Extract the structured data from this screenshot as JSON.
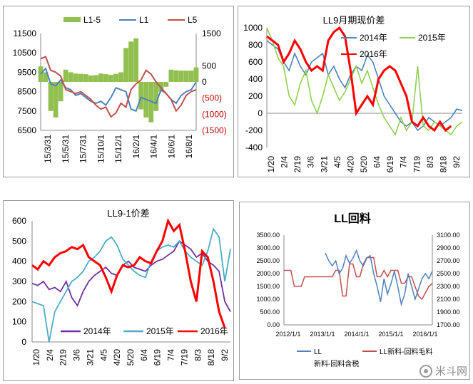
{
  "watermark": {
    "text": "米斗网",
    "icon": "wechat-icon"
  },
  "chart_data": [
    {
      "id": "c1",
      "type": "line",
      "title": "",
      "legend": {
        "position": "top",
        "entries": [
          "L1-5",
          "L1",
          "L5"
        ]
      },
      "left_axis": {
        "ticks": [
          "11500",
          "10500",
          "9500",
          "8500",
          "7500",
          "6500"
        ],
        "range": [
          6500,
          11500
        ]
      },
      "right_axis": {
        "ticks": [
          "1500",
          "500",
          "0",
          "(500)",
          "(1000)",
          "(1500)"
        ],
        "range": [
          -1500,
          1500
        ],
        "negative_color": "#c00000"
      },
      "x_ticks": [
        "15/3/31",
        "15/5/31",
        "15/7/31",
        "15/10/1",
        "15/12/1",
        "16/2/1",
        "16/4/1",
        "16/6/1",
        "16/8/1"
      ],
      "colors": {
        "L1-5": "#92c050",
        "L1": "#4f81bd",
        "L5": "#c0504d"
      },
      "series": [
        {
          "name": "L1-5",
          "axis": "right",
          "kind": "area",
          "values": [
            480,
            300,
            -900,
            -1100,
            -600,
            380,
            300,
            260,
            250,
            240,
            200,
            210,
            260,
            240,
            220,
            250,
            300,
            1050,
            1250,
            1350,
            -850,
            -1100,
            -1250,
            -900,
            -300,
            -150,
            380,
            360,
            350,
            350,
            350,
            450
          ]
        },
        {
          "name": "L1",
          "axis": "left",
          "values": [
            9400,
            9700,
            8900,
            8800,
            9100,
            8700,
            8600,
            8300,
            8400,
            8200,
            8000,
            7900,
            8000,
            7800,
            8200,
            8700,
            8600,
            8500,
            7600,
            7500,
            8200,
            8100,
            8000,
            7900,
            8600,
            8400,
            8100,
            7900,
            8300,
            8500,
            8600,
            9000
          ]
        },
        {
          "name": "L5",
          "axis": "left",
          "values": [
            10200,
            10300,
            9600,
            9500,
            9300,
            8600,
            8500,
            8400,
            8500,
            8300,
            8100,
            7800,
            7600,
            7700,
            7200,
            7400,
            7900,
            7700,
            8600,
            8900,
            9100,
            9600,
            9400,
            9000,
            8700,
            8400,
            8100,
            7500,
            7800,
            8300,
            8500,
            8600
          ]
        }
      ]
    },
    {
      "id": "c2",
      "type": "line",
      "title": "LL9月期现价差",
      "legend": {
        "position": "top-right",
        "entries": [
          "2014年",
          "2015年",
          "2016年"
        ]
      },
      "y_ticks": [
        "1000",
        "800",
        "600",
        "400",
        "200",
        "0",
        "-200",
        "-400"
      ],
      "ylim": [
        -400,
        1000
      ],
      "x_ticks": [
        "1/20",
        "2/4",
        "2/19",
        "3/6",
        "3/21",
        "4/5",
        "4/20",
        "5/20",
        "6/4",
        "6/19",
        "7/4",
        "7/19",
        "8/3",
        "8/18",
        "9/2"
      ],
      "colors": {
        "2014年": "#4f81bd",
        "2015年": "#92d050",
        "2016年": "#ff0000"
      },
      "series": [
        {
          "name": "2014年",
          "values": [
            850,
            800,
            750,
            600,
            500,
            700,
            550,
            450,
            600,
            650,
            700,
            450,
            550,
            400,
            300,
            450,
            550,
            500,
            680,
            600,
            400,
            200,
            100,
            0,
            -100,
            -150,
            -100,
            -200,
            -150,
            -50,
            -100,
            -150,
            -100,
            -50,
            50,
            30
          ]
        },
        {
          "name": "2015年",
          "values": [
            1000,
            850,
            650,
            550,
            200,
            100,
            350,
            500,
            150,
            0,
            200,
            450,
            300,
            150,
            250,
            400,
            550,
            350,
            500,
            300,
            100,
            -50,
            -150,
            -250,
            -50,
            -200,
            -100,
            550,
            -150,
            -200,
            -100,
            -150,
            -200,
            -250,
            -150,
            -100
          ]
        },
        {
          "name": "2016年",
          "values": [
            900,
            850,
            800,
            600,
            700,
            850,
            750,
            600,
            500,
            550,
            500,
            850,
            950,
            1000,
            900,
            500,
            0,
            100,
            200,
            100,
            400,
            500,
            550,
            500,
            350,
            200,
            -100,
            -150,
            -50,
            -150,
            -200,
            -100,
            -200,
            -150,
            null,
            null
          ]
        }
      ]
    },
    {
      "id": "c3",
      "type": "line",
      "title": "LL9-1价差",
      "legend": {
        "position": "bottom",
        "entries": [
          "2014年",
          "2015年",
          "2016年"
        ]
      },
      "y_ticks": [
        "600",
        "500",
        "400",
        "300",
        "200",
        "100",
        "0"
      ],
      "ylim": [
        0,
        600
      ],
      "x_ticks": [
        "1/20",
        "2/4",
        "2/19",
        "3/6",
        "3/21",
        "4/5",
        "4/20",
        "5/20",
        "6/4",
        "6/19",
        "7/4",
        "7/19",
        "8/3",
        "8/18",
        "9/2"
      ],
      "colors": {
        "2014年": "#7030a0",
        "2015年": "#4bacc6",
        "2016年": "#ff0000"
      },
      "series": [
        {
          "name": "2014年",
          "values": [
            290,
            280,
            300,
            260,
            270,
            250,
            300,
            220,
            180,
            250,
            300,
            330,
            350,
            370,
            340,
            330,
            380,
            400,
            370,
            360,
            350,
            380,
            400,
            410,
            430,
            450,
            500,
            480,
            460,
            420,
            440,
            400,
            380,
            350,
            200,
            150
          ]
        },
        {
          "name": "2015年",
          "values": [
            200,
            190,
            180,
            0,
            150,
            200,
            250,
            300,
            320,
            350,
            400,
            420,
            450,
            500,
            520,
            480,
            410,
            380,
            350,
            330,
            320,
            400,
            450,
            470,
            480,
            470,
            500,
            450,
            420,
            400,
            380,
            450,
            560,
            520,
            300,
            460
          ]
        },
        {
          "name": "2016年",
          "values": [
            380,
            360,
            400,
            380,
            420,
            440,
            450,
            470,
            460,
            480,
            420,
            400,
            380,
            320,
            250,
            330,
            380,
            370,
            380,
            420,
            400,
            390,
            450,
            500,
            600,
            550,
            580,
            450,
            300,
            200,
            450,
            420,
            300,
            150,
            70,
            null
          ]
        }
      ]
    },
    {
      "id": "c4",
      "type": "line",
      "title": "LL回料",
      "legend": {
        "position": "bottom",
        "entries": [
          "LL",
          "LL新料-回料毛料"
        ]
      },
      "left_axis": {
        "ticks": [
          "3500.00",
          "3000.00",
          "2500.00",
          "2000.00",
          "1500.00",
          "1000.00",
          "500.00",
          "0.00"
        ],
        "range": [
          0,
          3500
        ]
      },
      "right_axis": {
        "ticks": [
          "3100.00",
          "2900.00",
          "2700.00",
          "2500.00",
          "2300.00",
          "2100.00",
          "1900.00",
          "1700.00"
        ],
        "range": [
          1700,
          3100
        ]
      },
      "x_ticks": [
        "2012/1/1",
        "2013/1/1",
        "2014/1/1",
        "2015/1/1",
        "2016/1/1"
      ],
      "caption": "新料-回料含税",
      "colors": {
        "LL": "#4f81bd",
        "LL新料-回料毛料": "#c0504d"
      },
      "series": [
        {
          "name": "LL",
          "axis": "left",
          "values": [
            null,
            null,
            null,
            null,
            null,
            null,
            null,
            null,
            null,
            null,
            null,
            null,
            2800,
            2500,
            2300,
            2500,
            2000,
            2200,
            2700,
            2400,
            2600,
            2900,
            2500,
            2300,
            2600,
            2700,
            2000,
            1500,
            900,
            1800,
            1200,
            1600,
            2100,
            1500,
            800,
            1200,
            2000,
            1500,
            1000,
            1400,
            1800,
            2000,
            1800,
            2100
          ]
        },
        {
          "name": "LL新料-回料毛料",
          "axis": "right",
          "values": [
            2550,
            2550,
            2550,
            2300,
            2300,
            2300,
            2450,
            2450,
            2450,
            2450,
            2450,
            2450,
            2450,
            2450,
            2450,
            2550,
            2550,
            2150,
            2150,
            2650,
            2650,
            2450,
            2450,
            2650,
            2750,
            2750,
            2750,
            2450,
            2450,
            2550,
            2450,
            2550,
            2550,
            2550,
            2350,
            2350,
            2450,
            2450,
            2300,
            2150,
            2100,
            2200,
            2300,
            2350
          ]
        }
      ]
    }
  ]
}
